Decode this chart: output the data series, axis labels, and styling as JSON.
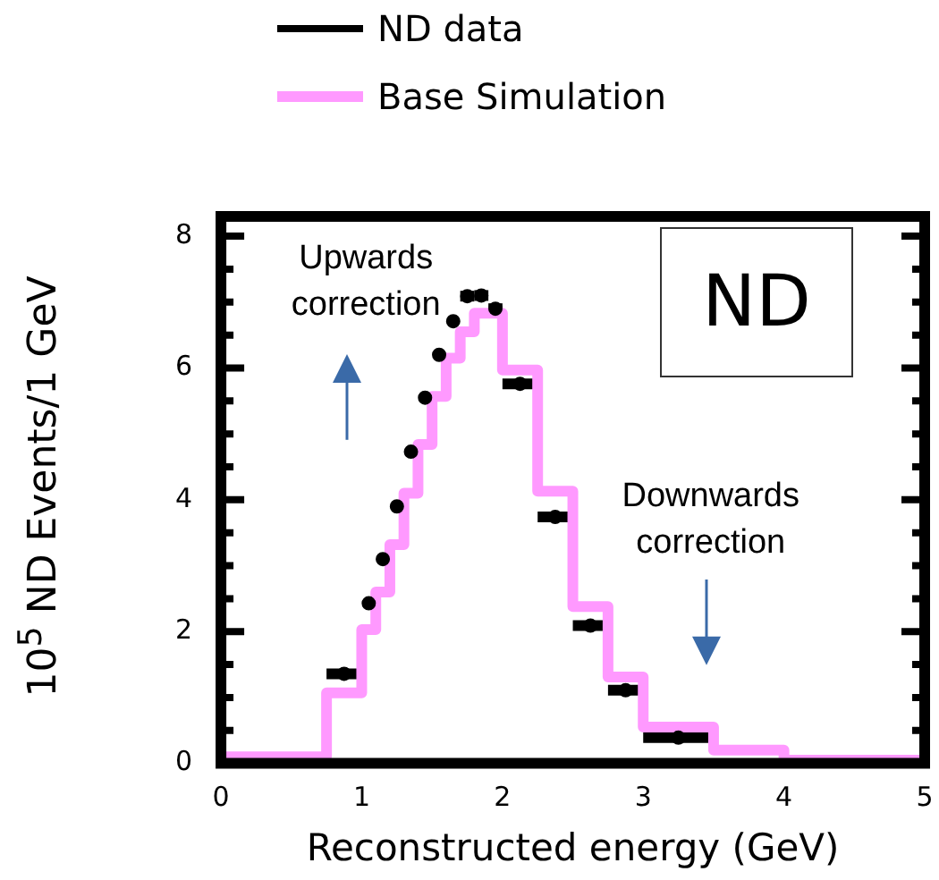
{
  "chart_data": {
    "type": "histogram",
    "xlabel": "Reconstructed energy (GeV)",
    "ylabel": "10$^{5}$ ND Events/1 GeV",
    "xlim": [
      0,
      5
    ],
    "xticks": [
      0,
      1,
      2,
      3,
      4,
      5
    ],
    "ylim": [
      0,
      8.3
    ],
    "yticks": [
      0,
      {
        "value": 0.5,
        "label": null
      },
      2,
      {
        "value": 1,
        "label": null
      },
      {
        "value": 1.5,
        "label": null
      },
      {
        "value": 2.5,
        "label": null
      },
      {
        "value": 3,
        "label": null
      },
      {
        "value": 3.5,
        "label": null
      },
      4,
      {
        "value": 4.5,
        "label": null
      },
      {
        "value": 5,
        "label": null
      },
      {
        "value": 5.5,
        "label": null
      },
      6,
      {
        "value": 6.5,
        "label": null
      },
      {
        "value": 7,
        "label": null
      },
      {
        "value": 7.5,
        "label": null
      },
      8
    ],
    "legend": "top left",
    "annotations": [
      "Upwards correction",
      "ND",
      "Downwards correction"
    ],
    "series": [
      {
        "name": "ND data",
        "type": "scatter",
        "color": "#000000",
        "x": [
          0.875,
          1.05,
          1.15,
          1.25,
          1.35,
          1.45,
          1.55,
          1.65,
          1.75,
          1.85,
          1.95,
          2.125,
          2.375,
          2.625,
          2.875,
          3.25
        ],
        "values": [
          1.36,
          2.43,
          3.1,
          3.9,
          4.73,
          5.55,
          6.2,
          6.71,
          7.09,
          7.1,
          6.9,
          5.76,
          3.74,
          2.09,
          1.11,
          0.39
        ],
        "xerrors": [
          0.125,
          null,
          null,
          null,
          null,
          null,
          null,
          null,
          0.05,
          0.05,
          0.05,
          0.125,
          0.125,
          0.125,
          0.125,
          0.25
        ]
      },
      {
        "name": "Base Simulation",
        "type": "histogram",
        "color": "#ff99ff",
        "bins": [
          0,
          0.75,
          1.0,
          1.1,
          1.2,
          1.3,
          1.4,
          1.5,
          1.6,
          1.7,
          1.8,
          2.0,
          2.25,
          2.5,
          2.75,
          3.0,
          3.5,
          4.0,
          5.0
        ],
        "values": [
          0.1,
          1.07,
          2.03,
          2.6,
          3.32,
          4.1,
          4.84,
          5.57,
          6.15,
          6.55,
          6.83,
          5.97,
          4.13,
          2.38,
          1.31,
          0.55,
          0.2,
          0.05
        ]
      }
    ]
  }
}
